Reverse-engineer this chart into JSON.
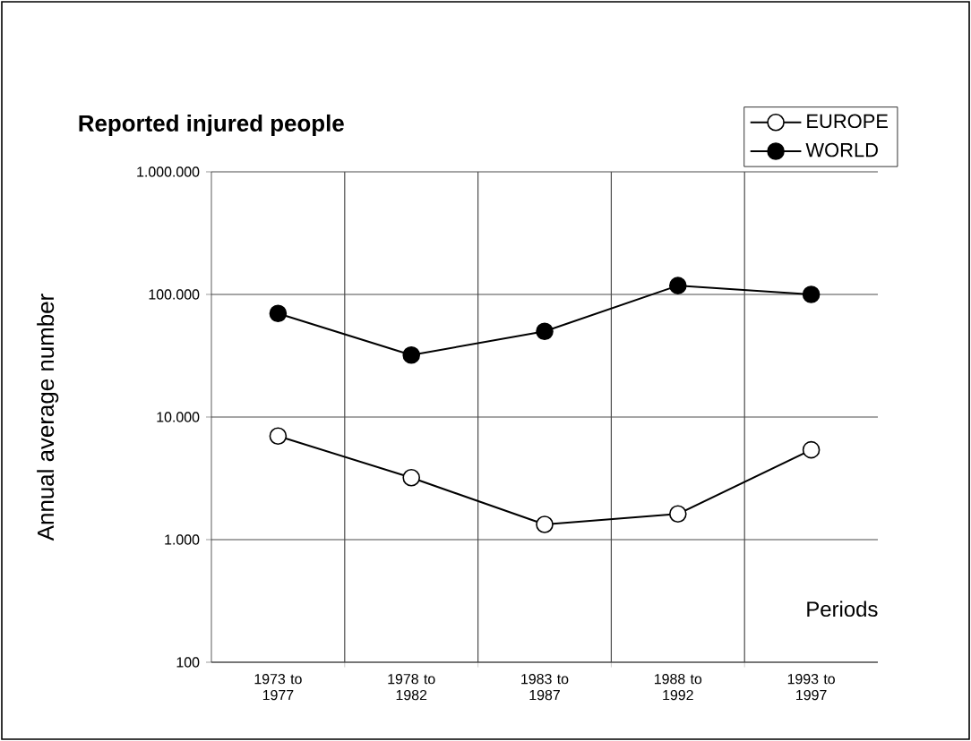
{
  "chart_data": {
    "type": "line",
    "title": "Reported injured people",
    "xlabel": "Periods",
    "ylabel": "Annual average number",
    "categories": [
      "1973 to 1977",
      "1978 to 1982",
      "1983 to 1987",
      "1988 to 1992",
      "1993 to 1997"
    ],
    "series": [
      {
        "name": "EUROPE",
        "color": "#ffffff",
        "values": [
          7000,
          3200,
          1330,
          1620,
          5400
        ]
      },
      {
        "name": "WORLD",
        "color": "#000000",
        "values": [
          70000,
          32000,
          50000,
          118000,
          100000
        ]
      }
    ],
    "log": "y",
    "ylim": [
      100,
      1000000
    ],
    "yticks": [
      {
        "value": 100,
        "label": "100"
      },
      {
        "value": 1000,
        "label": "1.000"
      },
      {
        "value": 10000,
        "label": "10.000"
      },
      {
        "value": 100000,
        "label": "100.000"
      },
      {
        "value": 1000000,
        "label": "1.000.000"
      }
    ],
    "grid": true,
    "legend": "top right",
    "marker": "circle",
    "line_style": "solid"
  }
}
